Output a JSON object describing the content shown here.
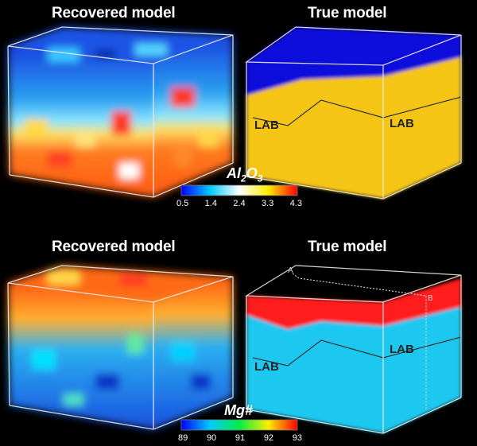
{
  "panels": {
    "top_left_title": "Recovered model",
    "top_right_title": "True model",
    "bottom_left_title": "Recovered model",
    "bottom_right_title": "True model"
  },
  "colorbar_al2o3": {
    "title_main": "Al",
    "title_sub1": "2",
    "title_mid": "O",
    "title_sub2": "3",
    "ticks": [
      "0.5",
      "1.4",
      "2.4",
      "3.3",
      "4.3"
    ]
  },
  "colorbar_mg": {
    "title": "Mg#",
    "ticks": [
      "89",
      "90",
      "91",
      "92",
      "93"
    ]
  },
  "labels": {
    "lab": "LAB",
    "point_a": "A",
    "point_b": "B"
  },
  "colors": {
    "true_top_layer_1": "#0a0adc",
    "true_bottom_layer_1": "#f5c518",
    "true_top_layer_2": "#ff1a1a",
    "true_bottom_layer_2": "#1ec8f0"
  }
}
